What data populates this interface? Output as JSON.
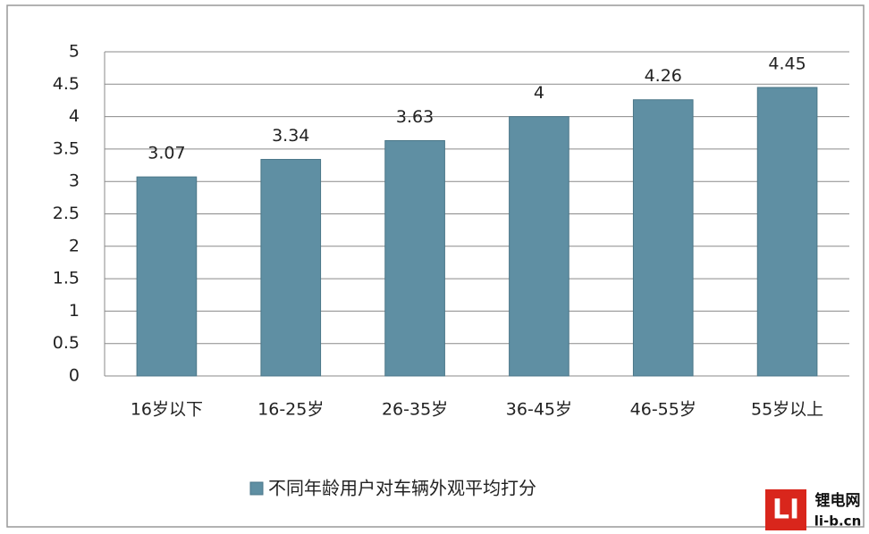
{
  "chart_data": {
    "type": "bar",
    "categories": [
      "16岁以下",
      "16-25岁",
      "26-35岁",
      "36-45岁",
      "46-55岁",
      "55岁以上"
    ],
    "series": [
      {
        "name": "不同年龄用户对车辆外观平均打分",
        "color": "#5f8fa3",
        "values": [
          3.07,
          3.34,
          3.63,
          4,
          4.26,
          4.45
        ]
      }
    ],
    "ylim": [
      0,
      5
    ],
    "yticks": [
      0,
      0.5,
      1,
      1.5,
      2,
      2.5,
      3,
      3.5,
      4,
      4.5,
      5
    ],
    "grid": true,
    "legend": "bottom"
  },
  "watermark": {
    "logo": "LI",
    "name": "锂电网",
    "url": "li-b.cn"
  }
}
